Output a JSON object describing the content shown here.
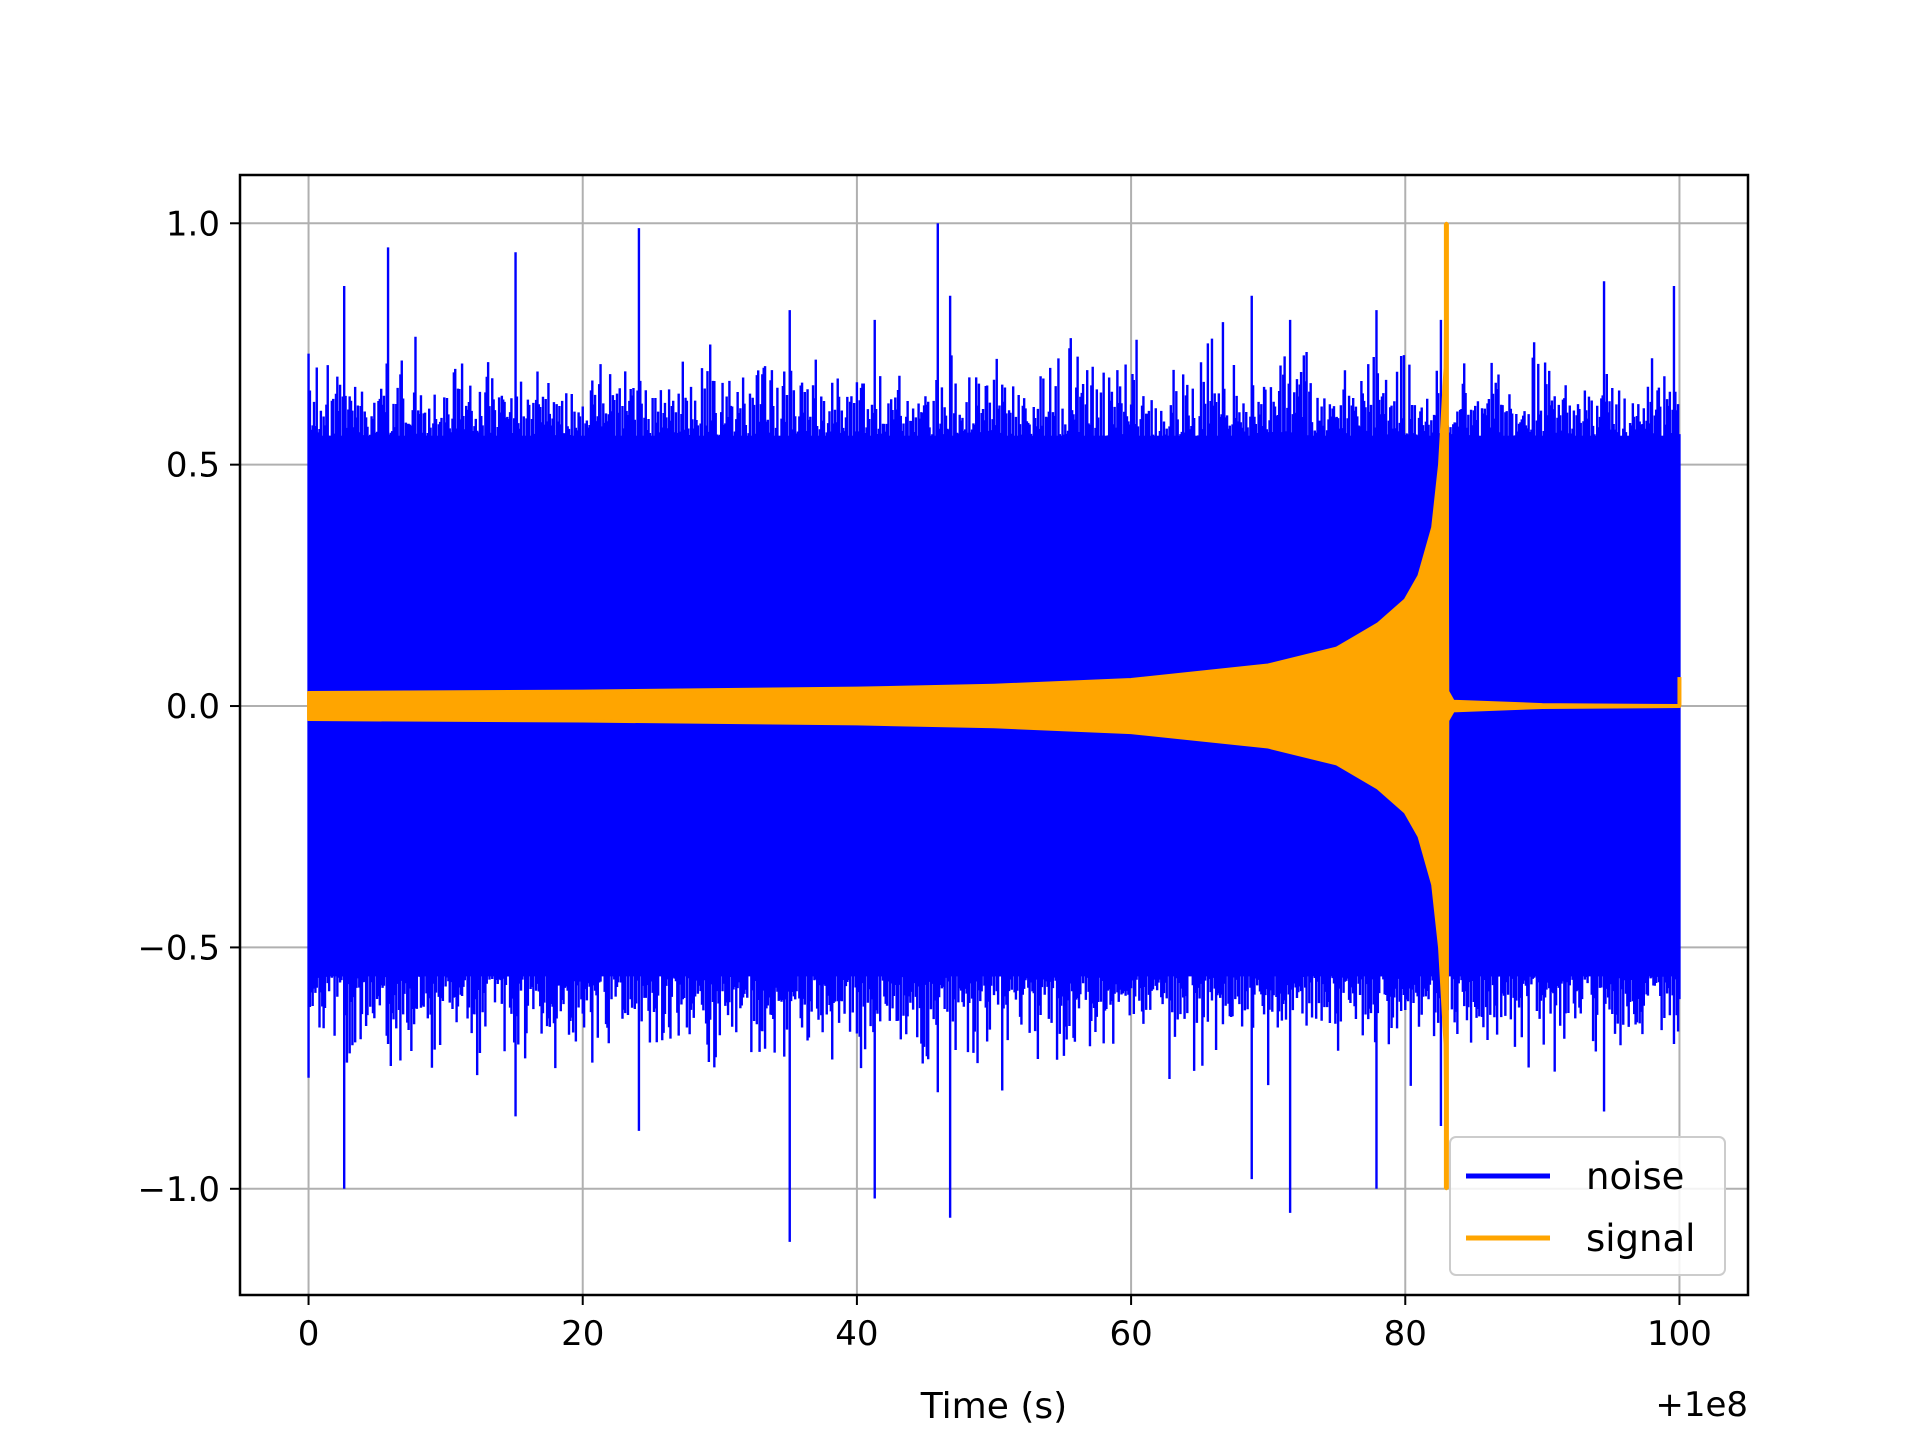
{
  "chart_data": {
    "type": "line",
    "title": "",
    "xlabel": "Time (s)",
    "ylabel": "",
    "x_offset_label": "+1e8",
    "xlim": [
      -5,
      105
    ],
    "ylim": [
      -1.22,
      1.1
    ],
    "xticks": [
      0,
      20,
      40,
      60,
      80,
      100
    ],
    "xtick_labels": [
      "0",
      "20",
      "40",
      "60",
      "80",
      "100"
    ],
    "yticks": [
      -1.0,
      -0.5,
      0.0,
      0.5,
      1.0
    ],
    "ytick_labels": [
      "−1.0",
      "−0.5",
      "0.0",
      "0.5",
      "1.0"
    ],
    "grid": true,
    "legend_position": "lower-right",
    "series": [
      {
        "name": "noise",
        "color": "#0000ff",
        "x_range": [
          0,
          100
        ],
        "envelope_peaks": [
          {
            "x": 0.0,
            "max": 0.73,
            "min": -0.77
          },
          {
            "x": 2.6,
            "max": 0.87,
            "min": -1.0
          },
          {
            "x": 5.8,
            "max": 0.95,
            "min": -0.7
          },
          {
            "x": 15.1,
            "max": 0.94,
            "min": -0.85
          },
          {
            "x": 24.1,
            "max": 0.99,
            "min": -0.88
          },
          {
            "x": 35.1,
            "max": 0.82,
            "min": -1.11
          },
          {
            "x": 41.3,
            "max": 0.8,
            "min": -1.02
          },
          {
            "x": 45.9,
            "max": 1.0,
            "min": -0.8
          },
          {
            "x": 46.8,
            "max": 0.85,
            "min": -1.06
          },
          {
            "x": 68.8,
            "max": 0.85,
            "min": -0.98
          },
          {
            "x": 71.6,
            "max": 0.8,
            "min": -1.05
          },
          {
            "x": 77.9,
            "max": 0.82,
            "min": -1.0
          },
          {
            "x": 82.6,
            "max": 0.8,
            "min": -0.87
          },
          {
            "x": 94.5,
            "max": 0.88,
            "min": -0.84
          },
          {
            "x": 99.6,
            "max": 0.87,
            "min": -0.7
          }
        ]
      },
      {
        "name": "signal",
        "color": "#ffa500",
        "x": [
          0,
          20,
          40,
          50,
          60,
          70,
          75,
          78,
          80,
          81,
          82,
          82.5,
          82.9,
          83.0,
          83.1,
          83.5,
          90,
          100
        ],
        "upper": [
          0.028,
          0.031,
          0.037,
          0.043,
          0.055,
          0.085,
          0.12,
          0.17,
          0.22,
          0.27,
          0.37,
          0.5,
          0.7,
          1.0,
          0.03,
          0.01,
          0.003,
          0.001
        ],
        "lower": [
          -0.028,
          -0.031,
          -0.037,
          -0.043,
          -0.055,
          -0.085,
          -0.12,
          -0.17,
          -0.22,
          -0.27,
          -0.37,
          -0.5,
          -0.7,
          -1.0,
          -0.03,
          -0.01,
          -0.003,
          -0.001
        ]
      }
    ]
  }
}
